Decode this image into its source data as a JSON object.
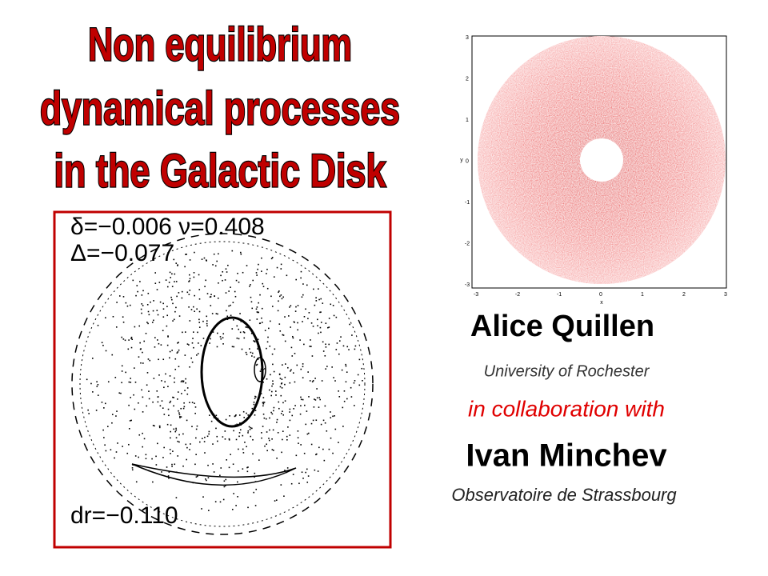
{
  "title": {
    "lines": [
      "Non equilibrium",
      "dynamical processes",
      "in the Galactic Disk"
    ]
  },
  "authors": {
    "name1": "Alice Quillen",
    "affiliation1": "University of Rochester",
    "collab": "in collaboration with",
    "name2": "Ivan Minchev",
    "affiliation2": "Observatoire de Strassbourg"
  },
  "left_figure": {
    "label1": "δ=−0.006  ν=0.408",
    "label2": "Δ=−0.077",
    "label3": "dr=−0.110"
  },
  "right_figure": {
    "yticks": [
      "3",
      "2",
      "1",
      "0",
      "-1",
      "-2",
      "-3"
    ],
    "xticks": [
      "-3",
      "-2",
      "-1",
      "0",
      "1",
      "2",
      "3"
    ],
    "xlabel": "x",
    "ylabel": "y"
  }
}
